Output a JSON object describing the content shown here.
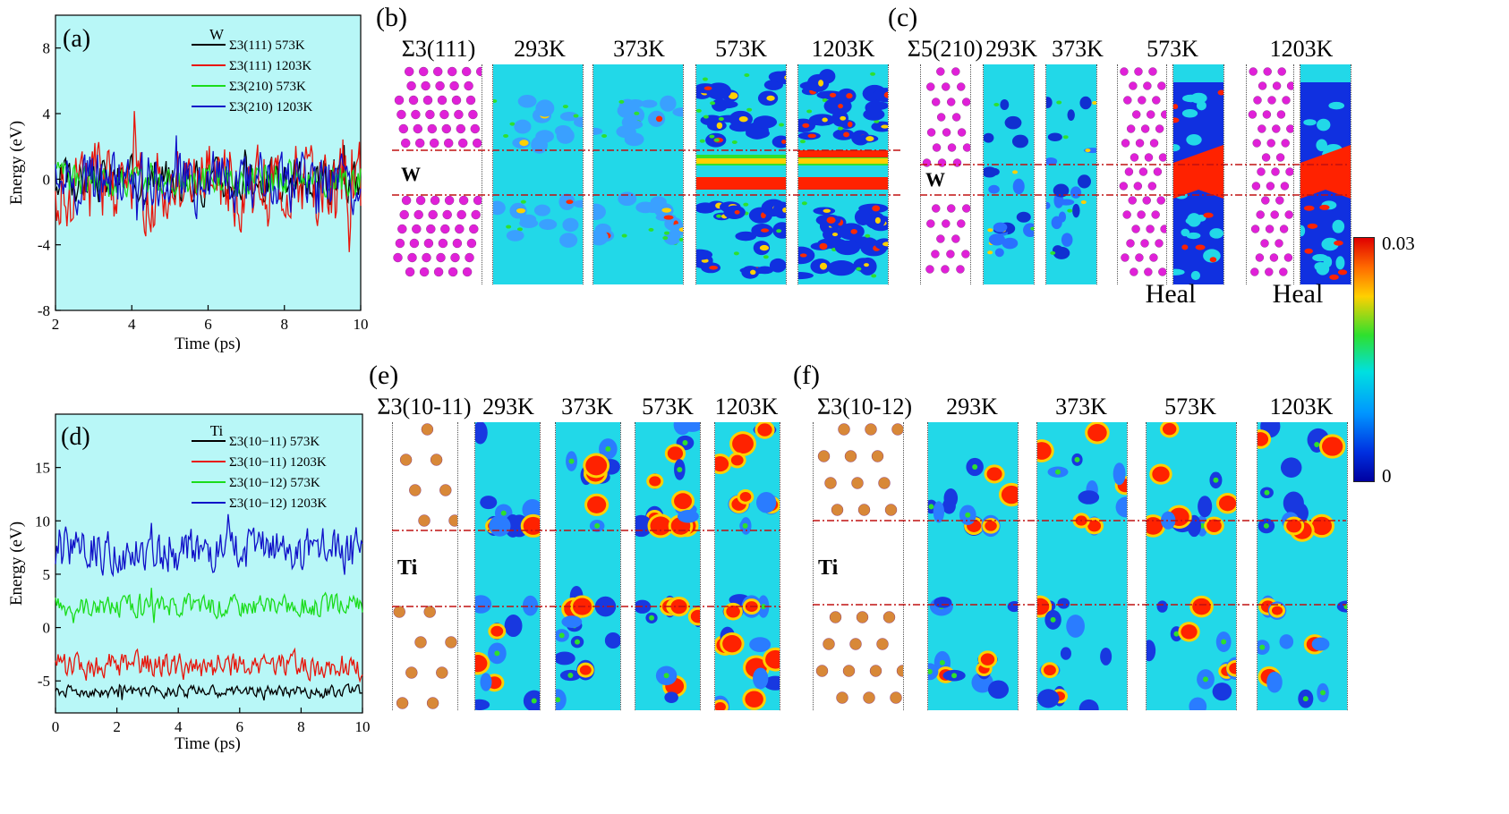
{
  "panels": {
    "a": "(a)",
    "b": "(b)",
    "c": "(c)",
    "d": "(d)",
    "e": "(e)",
    "f": "(f)"
  },
  "chart_data": [
    {
      "type": "line",
      "panel": "(a)",
      "legend_title": "W",
      "xlabel": "Time (ps)",
      "ylabel": "Energy (eV)",
      "xlim": [
        2,
        10
      ],
      "ylim": [
        -8,
        10
      ],
      "xticks": [
        2,
        4,
        6,
        8,
        10
      ],
      "yticks": [
        -8,
        -4,
        0,
        4,
        8
      ],
      "series": [
        {
          "name": "Σ3(111) 573K",
          "color": "#000000",
          "mean": 0,
          "amp": 1.2
        },
        {
          "name": "Σ3(111) 1203K",
          "color": "#e8150b",
          "mean": -0.4,
          "amp": 2.2
        },
        {
          "name": "Σ3(210) 573K",
          "color": "#1adc1a",
          "mean": 0,
          "amp": 0.9
        },
        {
          "name": "Σ3(210) 1203K",
          "color": "#1010c8",
          "mean": -0.2,
          "amp": 1.6
        }
      ]
    },
    {
      "type": "line",
      "panel": "(d)",
      "legend_title": "Ti",
      "xlabel": "Time (ps)",
      "ylabel": "Energy (eV)",
      "xlim": [
        0,
        10
      ],
      "ylim": [
        -8,
        20
      ],
      "xticks": [
        0,
        2,
        4,
        6,
        8,
        10
      ],
      "yticks": [
        -5,
        0,
        5,
        10,
        15
      ],
      "series": [
        {
          "name": "Σ3(10−11) 573K",
          "color": "#000000",
          "mean": -6,
          "amp": 0.5
        },
        {
          "name": "Σ3(10−11) 1203K",
          "color": "#e8150b",
          "mean": -3.6,
          "amp": 1.1
        },
        {
          "name": "Σ3(10−12) 573K",
          "color": "#1adc1a",
          "mean": 2.0,
          "amp": 0.9
        },
        {
          "name": "Σ3(10−12) 1203K",
          "color": "#1010c8",
          "mean": 7.2,
          "amp": 1.8
        }
      ]
    }
  ],
  "panel_b": {
    "gb_label": "Σ3(111)",
    "element": "W",
    "temps": [
      "293K",
      "373K",
      "573K",
      "1203K"
    ]
  },
  "panel_c": {
    "gb_label": "Σ5(210)",
    "element": "W",
    "temps": [
      "293K",
      "373K",
      "573K",
      "1203K"
    ],
    "heal_labels": [
      "Heal",
      "Heal"
    ]
  },
  "panel_e": {
    "gb_label": "Σ3(10-11)",
    "element": "Ti",
    "temps": [
      "293K",
      "373K",
      "573K",
      "1203K"
    ]
  },
  "panel_f": {
    "gb_label": "Σ3(10-12)",
    "element": "Ti",
    "temps": [
      "293K",
      "373K",
      "573K",
      "1203K"
    ]
  },
  "colorbar": {
    "max": "0.03",
    "min": "0"
  },
  "colors": {
    "plot_bg": "#b8f7f7",
    "map_bg": "#22d8e8",
    "w_atom": "#e020d8",
    "ti_atom": "#d88838",
    "gb_line": "#c01010"
  }
}
